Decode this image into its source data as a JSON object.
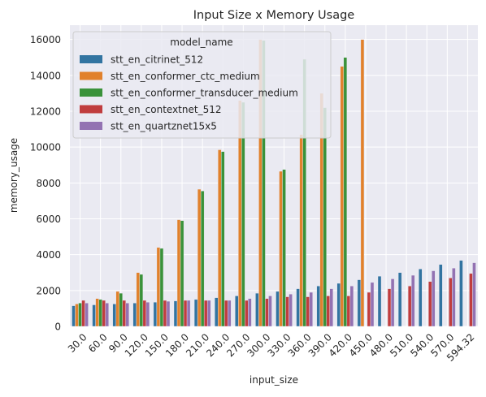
{
  "chart_data": {
    "type": "bar",
    "title": "Input Size x Memory Usage",
    "xlabel": "input_size",
    "ylabel": "memory_usage",
    "categories": [
      "30.0",
      "60.0",
      "90.0",
      "120.0",
      "150.0",
      "180.0",
      "210.0",
      "240.0",
      "270.0",
      "300.0",
      "330.0",
      "360.0",
      "390.0",
      "420.0",
      "450.0",
      "480.0",
      "510.0",
      "540.0",
      "570.0",
      "594.32"
    ],
    "ylim": [
      0,
      16800
    ],
    "yticks": [
      0,
      2000,
      4000,
      6000,
      8000,
      10000,
      12000,
      14000,
      16000
    ],
    "grid": true,
    "legend": {
      "title": "model_name",
      "placement": "top-left"
    },
    "series": [
      {
        "name": "stt_en_citrinet_512",
        "color": "#3274a1",
        "values": [
          1150,
          1200,
          1250,
          1300,
          1350,
          1420,
          1500,
          1600,
          1700,
          1850,
          1950,
          2100,
          2250,
          2400,
          2600,
          2800,
          3000,
          3200,
          3450,
          3680
        ]
      },
      {
        "name": "stt_en_conformer_ctc_medium",
        "color": "#e1812c",
        "values": [
          1250,
          1550,
          1950,
          3000,
          4400,
          5950,
          7650,
          9850,
          12600,
          16000,
          8650,
          10700,
          13000,
          14500,
          16000,
          null,
          null,
          null,
          null,
          null
        ]
      },
      {
        "name": "stt_en_conformer_transducer_medium",
        "color": "#3a923a",
        "values": [
          1300,
          1500,
          1850,
          2900,
          4350,
          5900,
          7550,
          9750,
          12500,
          15950,
          8750,
          14900,
          12200,
          15000,
          null,
          null,
          null,
          null,
          null,
          null
        ]
      },
      {
        "name": "stt_en_contextnet_512",
        "color": "#c03d3e",
        "values": [
          1450,
          1450,
          1450,
          1450,
          1450,
          1450,
          1450,
          1450,
          1450,
          1550,
          1650,
          1650,
          1700,
          1700,
          1900,
          2100,
          2250,
          2500,
          2700,
          2950
        ]
      },
      {
        "name": "stt_en_quartznet15x5",
        "color": "#9372b2",
        "values": [
          1300,
          1300,
          1300,
          1350,
          1400,
          1450,
          1450,
          1450,
          1550,
          1700,
          1800,
          1900,
          2100,
          2250,
          2450,
          2650,
          2850,
          3100,
          3250,
          3550
        ]
      }
    ]
  }
}
